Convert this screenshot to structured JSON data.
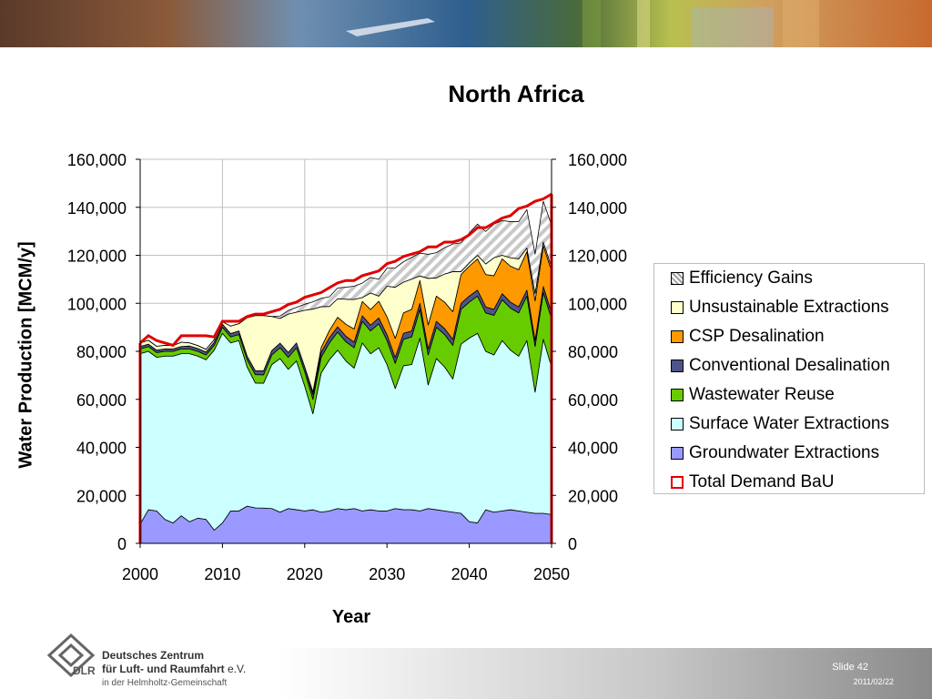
{
  "footer": {
    "org_line1": "Deutsches Zentrum",
    "org_line2": "für Luft- und Raumfahrt",
    "org_suffix": "e.V.",
    "org_line3": "in der Helmholtz-Gemeinschaft",
    "logo_text": "DLR",
    "slide": "Slide 42",
    "date": "2011/02/22"
  },
  "colors": {
    "groundwater": "#9999ff",
    "surface": "#ccffff",
    "wastewater": "#66cc00",
    "conventional": "#4d5488",
    "csp": "#ff9900",
    "unsustainable": "#ffffcc",
    "efficiency": "#d9d9d9",
    "demand": "#e00000"
  },
  "chart_data": {
    "type": "area",
    "title": "North Africa",
    "xlabel": "Year",
    "ylabel": "Water Production [MCM/y]",
    "xlim": [
      2000,
      2050
    ],
    "ylim": [
      0,
      160000
    ],
    "x_ticks": [
      "2000",
      "2010",
      "2020",
      "2030",
      "2040",
      "2050"
    ],
    "y_ticks": [
      "0",
      "20,000",
      "40,000",
      "60,000",
      "80,000",
      "100,000",
      "120,000",
      "140,000",
      "160,000"
    ],
    "grid": true,
    "legend_position": "right",
    "x": [
      2000,
      2001,
      2002,
      2003,
      2004,
      2005,
      2006,
      2007,
      2008,
      2009,
      2010,
      2011,
      2012,
      2013,
      2014,
      2015,
      2016,
      2017,
      2018,
      2019,
      2020,
      2021,
      2022,
      2023,
      2024,
      2025,
      2026,
      2027,
      2028,
      2029,
      2030,
      2031,
      2032,
      2033,
      2034,
      2035,
      2036,
      2037,
      2038,
      2039,
      2040,
      2041,
      2042,
      2043,
      2044,
      2045,
      2046,
      2047,
      2048,
      2049,
      2050
    ],
    "series": [
      {
        "name": "Groundwater Extractions",
        "key": "groundwater",
        "values": [
          8000,
          14000,
          13500,
          10000,
          8500,
          11500,
          9000,
          10500,
          10000,
          5500,
          8500,
          13500,
          13500,
          15500,
          14800,
          14700,
          14500,
          13000,
          14500,
          14000,
          13500,
          14000,
          13000,
          13500,
          14500,
          14000,
          14500,
          13500,
          14000,
          13500,
          13500,
          14500,
          14000,
          14000,
          13500,
          14500,
          14000,
          13500,
          13000,
          12500,
          9000,
          8500,
          14000,
          13000,
          13500,
          14000,
          13500,
          13000,
          12500,
          12500,
          12000
        ]
      },
      {
        "name": "Surface Water Extractions",
        "key": "surface",
        "values": [
          71000,
          66000,
          64000,
          68000,
          69500,
          67500,
          70000,
          67500,
          66500,
          75000,
          79000,
          70000,
          71000,
          58000,
          52000,
          52000,
          60000,
          64000,
          58000,
          62000,
          52000,
          40000,
          58000,
          63000,
          66000,
          62000,
          58500,
          70000,
          65000,
          68000,
          61000,
          50000,
          60000,
          60500,
          72000,
          51500,
          63000,
          60000,
          55500,
          70500,
          76500,
          79000,
          66000,
          65500,
          71000,
          66500,
          64500,
          71500,
          50500,
          72500,
          61500
        ]
      },
      {
        "name": "Wastewater Reuse",
        "key": "wastewater",
        "values": [
          2000,
          2000,
          2000,
          2000,
          2000,
          2000,
          2000,
          2000,
          2000,
          2000,
          2500,
          2500,
          2500,
          3000,
          3500,
          3500,
          4000,
          4500,
          5000,
          5500,
          6000,
          6000,
          6500,
          7000,
          7500,
          8000,
          8500,
          9000,
          9500,
          10000,
          10000,
          10500,
          11000,
          11500,
          12000,
          12500,
          13000,
          13500,
          14000,
          14500,
          15000,
          15500,
          16000,
          16500,
          17000,
          17500,
          18000,
          18500,
          19000,
          19500,
          20000
        ]
      },
      {
        "name": "Conventional Desalination",
        "key": "conventional",
        "values": [
          1000,
          1000,
          1000,
          1000,
          1000,
          1000,
          1200,
          1200,
          1200,
          1300,
          1300,
          1400,
          1500,
          1500,
          1600,
          1700,
          1800,
          1900,
          2000,
          2000,
          2000,
          2100,
          2100,
          2200,
          2200,
          2300,
          2300,
          2300,
          2400,
          2400,
          2400,
          2400,
          2500,
          2500,
          2500,
          2500,
          2500,
          2500,
          2500,
          2500,
          2500,
          2500,
          2500,
          2500,
          2500,
          2500,
          2500,
          2500,
          2500,
          2500,
          2500
        ]
      },
      {
        "name": "CSP Desalination",
        "key": "csp",
        "values": [
          0,
          0,
          0,
          0,
          0,
          0,
          0,
          0,
          0,
          0,
          0,
          0,
          0,
          0,
          0,
          0,
          0,
          0,
          0,
          0,
          0,
          1000,
          2000,
          3000,
          4000,
          5000,
          5500,
          6000,
          6500,
          7000,
          7500,
          8000,
          8500,
          9000,
          9500,
          10000,
          10500,
          11000,
          11500,
          12000,
          12500,
          13000,
          13500,
          14000,
          14500,
          15000,
          15500,
          16000,
          16500,
          17000,
          17500
        ]
      },
      {
        "name": "Unsustainable Extractions",
        "key": "unsustainable",
        "values": [
          1500,
          1600,
          1600,
          1500,
          1400,
          1800,
          1300,
          1200,
          1100,
          1100,
          1000,
          3100,
          3000,
          16000,
          23000,
          23000,
          14200,
          10300,
          16000,
          12800,
          23600,
          34500,
          17000,
          10000,
          7700,
          10400,
          12300,
          1600,
          6900,
          2100,
          12700,
          21300,
          12800,
          12600,
          1900,
          19400,
          7600,
          11700,
          16700,
          1200,
          1300,
          1500,
          4400,
          7500,
          1500,
          3500,
          4500,
          1500,
          3000,
          1500,
          1500
        ]
      },
      {
        "name": "Efficiency Gains",
        "key": "efficiency",
        "values": [
          0,
          0,
          0,
          0,
          0,
          0,
          0,
          0,
          0,
          0,
          0,
          0,
          0,
          0,
          0,
          0,
          0,
          1000,
          1500,
          2000,
          2500,
          3000,
          3500,
          4000,
          4500,
          5000,
          5500,
          6000,
          6500,
          7000,
          7500,
          8000,
          8500,
          9000,
          9500,
          10000,
          10500,
          11000,
          11500,
          12000,
          12500,
          13000,
          13500,
          14000,
          14500,
          15000,
          15500,
          16000,
          16500,
          17000,
          17500
        ]
      },
      {
        "name": "Total Demand BaU",
        "key": "demand",
        "values": [
          83500,
          86500,
          84500,
          83500,
          82500,
          86500,
          86500,
          86500,
          86500,
          86000,
          92500,
          92500,
          92500,
          94500,
          95500,
          95500,
          96500,
          97500,
          99500,
          100500,
          102500,
          103500,
          104500,
          106500,
          108500,
          109500,
          109500,
          111500,
          112500,
          113500,
          116500,
          117500,
          119500,
          120500,
          121500,
          123500,
          123500,
          125500,
          125500,
          126500,
          128500,
          131500,
          131500,
          133500,
          135500,
          136500,
          139500,
          140500,
          142500,
          143500,
          145500
        ]
      }
    ]
  }
}
